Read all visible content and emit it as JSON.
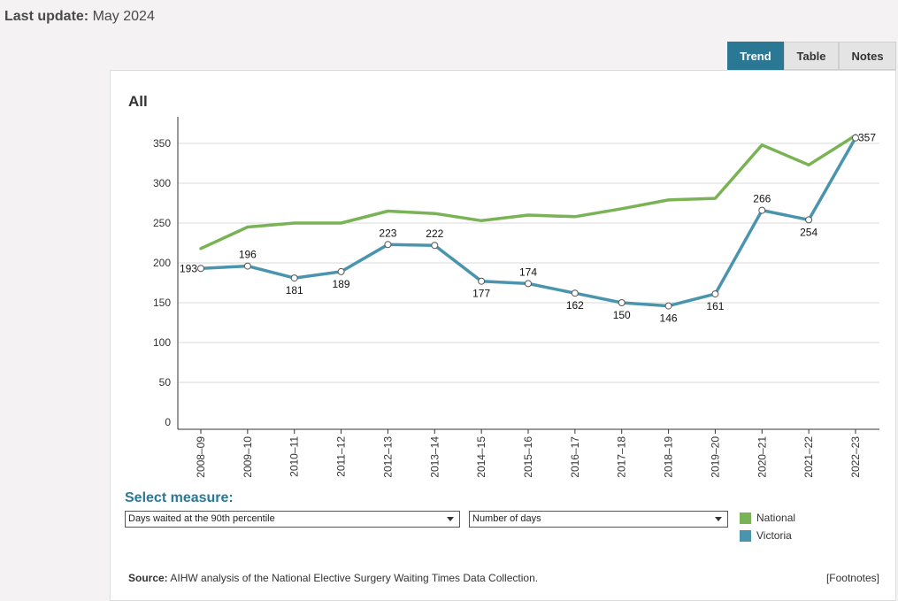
{
  "last_update": {
    "label": "Last update:",
    "value": "May 2024"
  },
  "tabs": [
    {
      "label": "Trend",
      "active": true
    },
    {
      "label": "Table",
      "active": false
    },
    {
      "label": "Notes",
      "active": false
    }
  ],
  "controls": {
    "select_measure_label": "Select measure:",
    "measure_selected": "Days waited at the 90th percentile",
    "unit_selected": "Number of days"
  },
  "legend": [
    {
      "label": "National",
      "color": "#7ab356"
    },
    {
      "label": "Victoria",
      "color": "#4a95ad"
    }
  ],
  "source": {
    "label": "Source:",
    "text": "AIHW analysis of the National Elective Surgery Waiting Times Data Collection."
  },
  "footnotes_label": "[Footnotes]",
  "chart_data": {
    "type": "line",
    "title": "All",
    "xlabel": "",
    "ylabel": "",
    "ylim": [
      0,
      380
    ],
    "yticks": [
      0,
      50,
      100,
      150,
      200,
      250,
      300,
      350
    ],
    "grid": true,
    "categories": [
      "2008–09",
      "2009–10",
      "2010–11",
      "2011–12",
      "2012–13",
      "2013–14",
      "2014–15",
      "2015–16",
      "2016–17",
      "2017–18",
      "2018–19",
      "2019–20",
      "2020–21",
      "2021–22",
      "2022–23"
    ],
    "series": [
      {
        "name": "National",
        "color": "#7ab356",
        "markers": false,
        "labels": false,
        "values": [
          218,
          245,
          250,
          250,
          265,
          262,
          253,
          260,
          258,
          268,
          279,
          281,
          348,
          323,
          360
        ]
      },
      {
        "name": "Victoria",
        "color": "#4a95ad",
        "markers": true,
        "labels": true,
        "values": [
          193,
          196,
          181,
          189,
          223,
          222,
          177,
          174,
          162,
          150,
          146,
          161,
          266,
          254,
          357
        ]
      }
    ]
  }
}
